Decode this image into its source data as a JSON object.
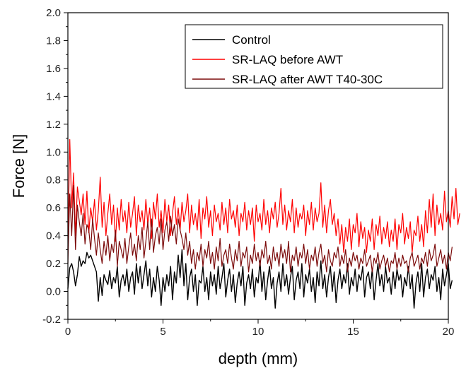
{
  "chart_data": {
    "type": "line",
    "title": "",
    "xlabel": "depth (mm)",
    "ylabel": "Force [N]",
    "xlim": [
      0,
      20
    ],
    "ylim": [
      -0.2,
      2.0
    ],
    "xticks": [
      0,
      5,
      10,
      15,
      20
    ],
    "yticks": [
      -0.2,
      0.0,
      0.2,
      0.4,
      0.6,
      0.8,
      1.0,
      1.2,
      1.4,
      1.6,
      1.8,
      2.0
    ],
    "grid": false,
    "legend_position": "top-right",
    "x_step": 0.1,
    "series": [
      {
        "name": "Control",
        "color": "#000000",
        "values": [
          0.02,
          0.17,
          0.2,
          0.14,
          0.04,
          0.12,
          0.25,
          0.18,
          0.22,
          0.2,
          0.28,
          0.24,
          0.26,
          0.22,
          0.18,
          0.14,
          -0.07,
          0.1,
          -0.03,
          0.12,
          0.08,
          0.05,
          0.15,
          0.02,
          0.1,
          0.06,
          0.18,
          -0.04,
          0.08,
          0.12,
          0.04,
          0.16,
          0.0,
          0.1,
          0.14,
          -0.02,
          0.2,
          0.06,
          0.18,
          0.02,
          0.12,
          0.22,
          0.04,
          0.16,
          -0.04,
          0.1,
          0.0,
          0.18,
          0.08,
          -0.1,
          0.1,
          0.0,
          0.12,
          0.04,
          0.18,
          -0.06,
          0.14,
          0.06,
          0.26,
          0.1,
          0.3,
          0.04,
          0.2,
          -0.06,
          0.1,
          0.16,
          0.0,
          0.12,
          -0.1,
          0.08,
          0.06,
          0.18,
          0.0,
          0.1,
          -0.06,
          0.14,
          0.04,
          0.12,
          -0.02,
          0.18,
          0.02,
          0.1,
          0.2,
          -0.04,
          0.08,
          0.16,
          0.0,
          0.12,
          -0.08,
          0.06,
          0.14,
          0.04,
          0.18,
          -0.1,
          0.06,
          0.12,
          0.02,
          0.16,
          -0.04,
          0.1,
          0.06,
          0.22,
          0.0,
          0.14,
          -0.06,
          0.08,
          0.18,
          0.02,
          0.1,
          -0.12,
          0.06,
          0.14,
          0.0,
          0.2,
          0.04,
          0.12,
          -0.02,
          0.1,
          0.18,
          -0.06,
          0.08,
          0.14,
          0.02,
          0.2,
          -0.04,
          0.12,
          0.06,
          0.16,
          0.0,
          0.1,
          -0.08,
          0.14,
          0.04,
          0.22,
          0.02,
          0.12,
          -0.04,
          0.1,
          0.18,
          0.0,
          0.14,
          -0.08,
          0.08,
          0.16,
          0.02,
          0.12,
          0.06,
          0.2,
          -0.02,
          0.1,
          0.04,
          0.16,
          0.0,
          0.12,
          0.08,
          0.18,
          -0.04,
          0.1,
          0.14,
          0.02,
          0.16,
          -0.06,
          0.08,
          0.2,
          0.04,
          0.12,
          0.0,
          0.18,
          0.06,
          0.1,
          -0.02,
          0.14,
          0.02,
          0.16,
          0.08,
          0.12,
          -0.04,
          0.1,
          0.04,
          0.18,
          0.02,
          0.12,
          -0.12,
          0.06,
          0.14,
          0.0,
          0.2,
          -0.04,
          0.1,
          0.16,
          0.02,
          0.12,
          0.08,
          0.18,
          0.0,
          0.1,
          -0.06,
          0.16,
          0.04,
          0.12,
          0.2,
          0.02,
          0.08
        ]
      },
      {
        "name": "SR-LAQ before AWT",
        "color": "#ff0000",
        "values": [
          0.3,
          1.09,
          0.6,
          0.85,
          0.4,
          0.75,
          0.65,
          0.55,
          0.7,
          0.48,
          0.72,
          0.42,
          0.6,
          0.5,
          0.66,
          0.44,
          0.58,
          0.82,
          0.46,
          0.64,
          0.4,
          0.56,
          0.7,
          0.48,
          0.62,
          0.36,
          0.6,
          0.44,
          0.66,
          0.5,
          0.58,
          0.42,
          0.64,
          0.46,
          0.56,
          0.68,
          0.4,
          0.62,
          0.5,
          0.58,
          0.44,
          0.66,
          0.48,
          0.6,
          0.38,
          0.64,
          0.52,
          0.7,
          0.46,
          0.58,
          0.42,
          0.66,
          0.5,
          0.62,
          0.4,
          0.56,
          0.68,
          0.48,
          0.6,
          0.44,
          0.64,
          0.5,
          0.58,
          0.7,
          0.42,
          0.62,
          0.48,
          0.56,
          0.44,
          0.66,
          0.38,
          0.6,
          0.52,
          0.68,
          0.46,
          0.58,
          0.4,
          0.62,
          0.5,
          0.56,
          0.44,
          0.64,
          0.48,
          0.6,
          0.42,
          0.66,
          0.52,
          0.58,
          0.46,
          0.62,
          0.4,
          0.56,
          0.5,
          0.64,
          0.44,
          0.58,
          0.48,
          0.6,
          0.36,
          0.62,
          0.5,
          0.56,
          0.44,
          0.66,
          0.48,
          0.58,
          0.42,
          0.6,
          0.52,
          0.64,
          0.46,
          0.56,
          0.74,
          0.48,
          0.62,
          0.44,
          0.58,
          0.5,
          0.66,
          0.42,
          0.6,
          0.46,
          0.56,
          0.52,
          0.62,
          0.4,
          0.58,
          0.48,
          0.64,
          0.44,
          0.6,
          0.5,
          0.56,
          0.78,
          0.46,
          0.62,
          0.42,
          0.58,
          0.66,
          0.48,
          0.56,
          0.4,
          0.52,
          0.34,
          0.48,
          0.28,
          0.46,
          0.36,
          0.52,
          0.3,
          0.48,
          0.42,
          0.56,
          0.32,
          0.5,
          0.38,
          0.46,
          0.28,
          0.44,
          0.36,
          0.52,
          0.3,
          0.48,
          0.4,
          0.54,
          0.34,
          0.46,
          0.38,
          0.5,
          0.32,
          0.44,
          0.36,
          0.52,
          0.3,
          0.48,
          0.42,
          0.56,
          0.34,
          0.46,
          0.38,
          0.5,
          0.28,
          0.44,
          0.4,
          0.54,
          0.36,
          0.48,
          0.32,
          0.58,
          0.42,
          0.66,
          0.46,
          0.7,
          0.4,
          0.62,
          0.48,
          0.56,
          0.44,
          0.72,
          0.5,
          0.58,
          0.46,
          0.68,
          0.52,
          0.74,
          0.48,
          0.56
        ]
      },
      {
        "name": "SR-LAQ after AWT T40-30C",
        "color": "#7b0a0a",
        "values": [
          0.2,
          0.7,
          0.4,
          0.76,
          0.3,
          0.62,
          0.5,
          0.4,
          0.56,
          0.34,
          0.48,
          0.44,
          0.3,
          0.52,
          0.38,
          0.26,
          0.42,
          0.3,
          0.2,
          0.36,
          0.26,
          0.4,
          0.22,
          0.34,
          0.28,
          0.44,
          0.18,
          0.36,
          0.3,
          0.24,
          0.38,
          0.2,
          0.32,
          0.42,
          0.26,
          0.34,
          0.22,
          0.4,
          0.3,
          0.46,
          0.24,
          0.36,
          0.5,
          0.3,
          0.52,
          0.28,
          0.4,
          0.46,
          0.34,
          0.52,
          0.3,
          0.44,
          0.5,
          0.36,
          0.54,
          0.4,
          0.48,
          0.34,
          0.52,
          0.44,
          0.38,
          0.3,
          0.42,
          0.26,
          0.36,
          0.2,
          0.3,
          0.16,
          0.28,
          0.22,
          0.34,
          0.18,
          0.3,
          0.24,
          0.36,
          0.2,
          0.28,
          0.16,
          0.32,
          0.22,
          0.38,
          0.18,
          0.26,
          0.3,
          0.2,
          0.34,
          0.24,
          0.16,
          0.3,
          0.22,
          0.36,
          0.18,
          0.28,
          0.24,
          0.32,
          0.14,
          0.26,
          0.2,
          0.34,
          0.22,
          0.28,
          0.18,
          0.3,
          0.24,
          0.36,
          0.2,
          0.26,
          0.16,
          0.32,
          0.22,
          0.28,
          0.18,
          0.34,
          0.24,
          0.3,
          0.2,
          0.36,
          0.14,
          0.26,
          0.22,
          0.32,
          0.18,
          0.28,
          0.24,
          0.34,
          0.2,
          0.3,
          0.16,
          0.26,
          0.22,
          0.32,
          0.18,
          0.28,
          0.34,
          0.2,
          0.26,
          0.14,
          0.3,
          0.22,
          0.18,
          0.28,
          0.24,
          0.32,
          0.18,
          0.26,
          0.2,
          0.3,
          0.14,
          0.24,
          0.18,
          0.28,
          0.22,
          0.26,
          0.16,
          0.24,
          0.2,
          0.3,
          0.18,
          0.22,
          0.26,
          0.14,
          0.24,
          0.2,
          0.28,
          0.16,
          0.22,
          0.26,
          0.18,
          0.24,
          0.14,
          0.22,
          0.2,
          0.28,
          0.16,
          0.24,
          0.18,
          0.26,
          0.2,
          0.22,
          0.14,
          0.24,
          0.28,
          0.18,
          0.22,
          0.26,
          0.16,
          0.24,
          0.2,
          0.28,
          0.18,
          0.3,
          0.22,
          0.26,
          0.34,
          0.18,
          0.24,
          0.3,
          0.2,
          0.26,
          0.16,
          0.28,
          0.22,
          0.32
        ]
      }
    ]
  }
}
